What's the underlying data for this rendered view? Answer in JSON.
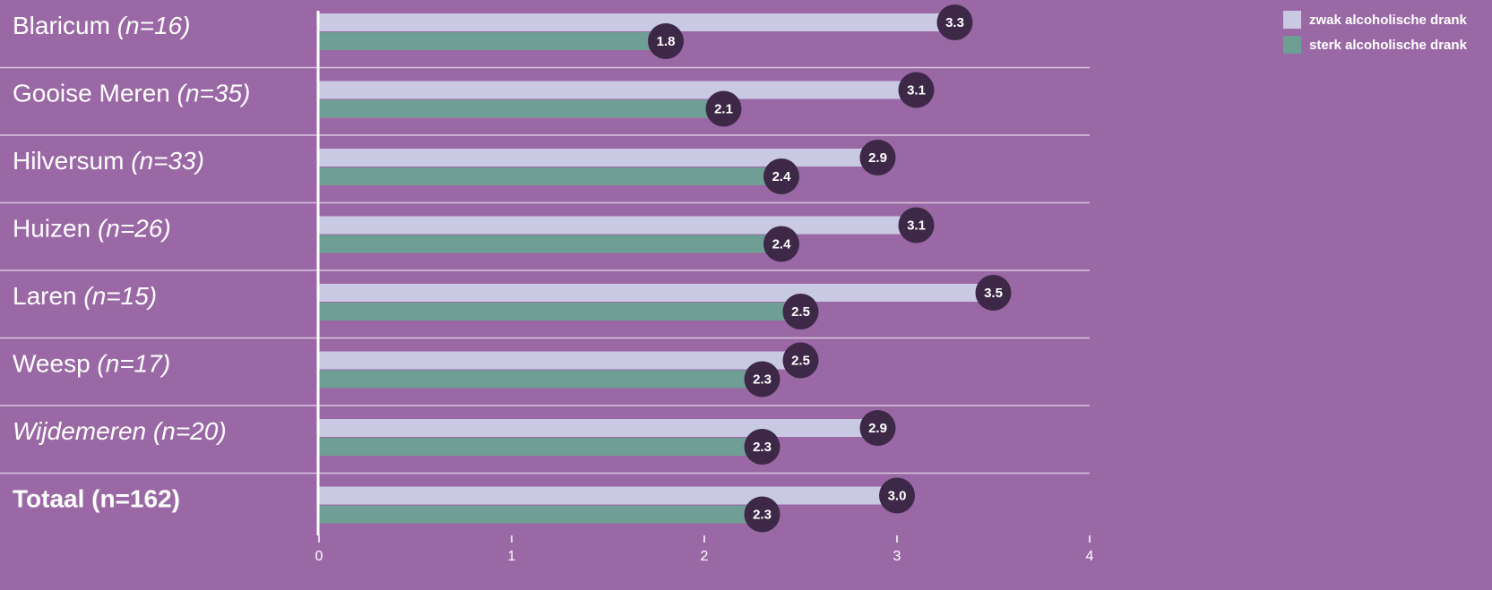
{
  "chart_data": {
    "type": "bar",
    "orientation": "horizontal",
    "categories": [
      {
        "name": "Blaricum",
        "n": "(n=16)"
      },
      {
        "name": "Gooise Meren",
        "n": "(n=35)"
      },
      {
        "name": "Hilversum",
        "n": "(n=33)"
      },
      {
        "name": "Huizen",
        "n": "(n=26)"
      },
      {
        "name": "Laren",
        "n": "(n=15)"
      },
      {
        "name": "Weesp",
        "n": "(n=17)"
      },
      {
        "name": "Wijdemeren",
        "n": "(n=20)"
      },
      {
        "name": "Totaal",
        "n": "(n=162)"
      }
    ],
    "series": [
      {
        "name": "zwak alcoholische drank",
        "color": "#c9c9e3",
        "values": [
          3.3,
          3.1,
          2.9,
          3.1,
          3.5,
          2.5,
          2.9,
          3.0
        ],
        "labels": [
          "3.3",
          "3.1",
          "2.9",
          "3.1",
          "3.5",
          "2.5",
          "2.9",
          "3.0"
        ]
      },
      {
        "name": "sterk alcoholische drank",
        "color": "#6f9e94",
        "values": [
          1.8,
          2.1,
          2.4,
          2.4,
          2.5,
          2.3,
          2.3,
          2.3
        ],
        "labels": [
          "1.8",
          "2.1",
          "2.4",
          "2.4",
          "2.5",
          "2.3",
          "2.3",
          "2.3"
        ]
      }
    ],
    "xlim": [
      0,
      4
    ],
    "xticks": [
      "0",
      "1",
      "2",
      "3",
      "4"
    ],
    "legend_position": "top-right",
    "bubble_color": "#3d2947",
    "background_color": "#9a69a5",
    "divider_color": "#d9c5de",
    "title": "",
    "xlabel": "",
    "ylabel": ""
  }
}
